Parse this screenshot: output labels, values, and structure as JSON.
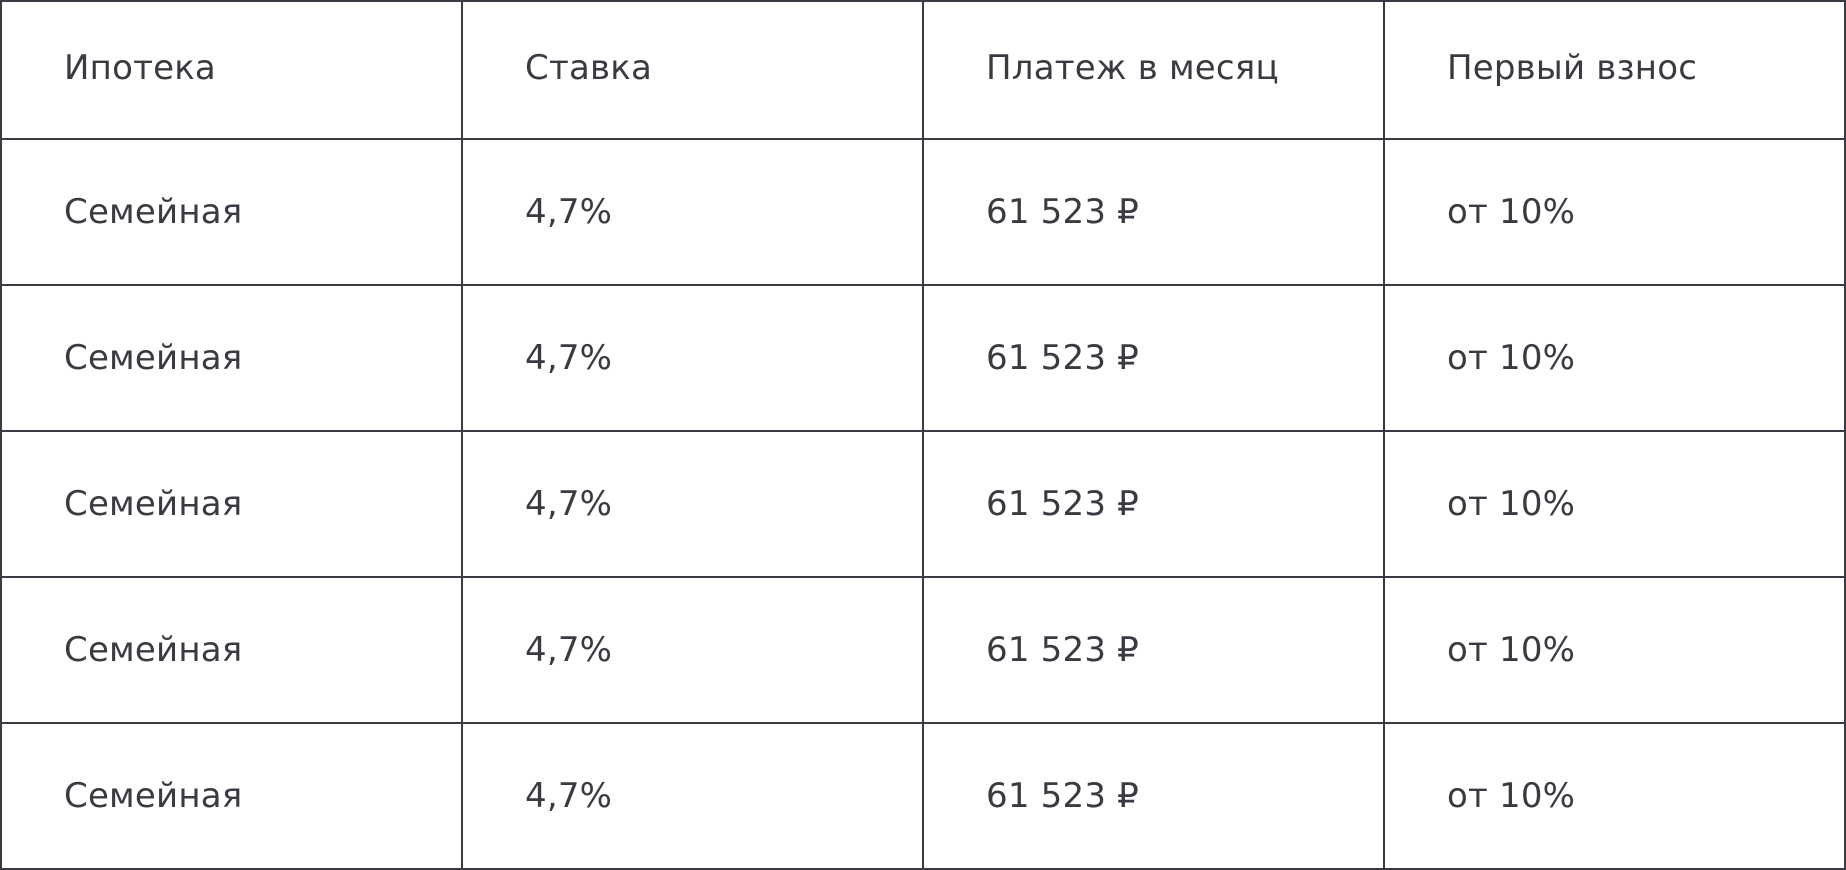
{
  "table": {
    "headers": [
      "Ипотека",
      "Ставка",
      "Платеж в месяц",
      "Первый взнос"
    ],
    "rows": [
      [
        "Семейная",
        "4,7%",
        "61 523 ₽",
        "от 10%"
      ],
      [
        "Семейная",
        "4,7%",
        "61 523 ₽",
        "от 10%"
      ],
      [
        "Семейная",
        "4,7%",
        "61 523 ₽",
        "от 10%"
      ],
      [
        "Семейная",
        "4,7%",
        "61 523 ₽",
        "от 10%"
      ],
      [
        "Семейная",
        "4,7%",
        "61 523 ₽",
        "от 10%"
      ]
    ]
  },
  "colors": {
    "text": "#3a3a42",
    "border": "#3a3a42",
    "background": "#ffffff"
  }
}
